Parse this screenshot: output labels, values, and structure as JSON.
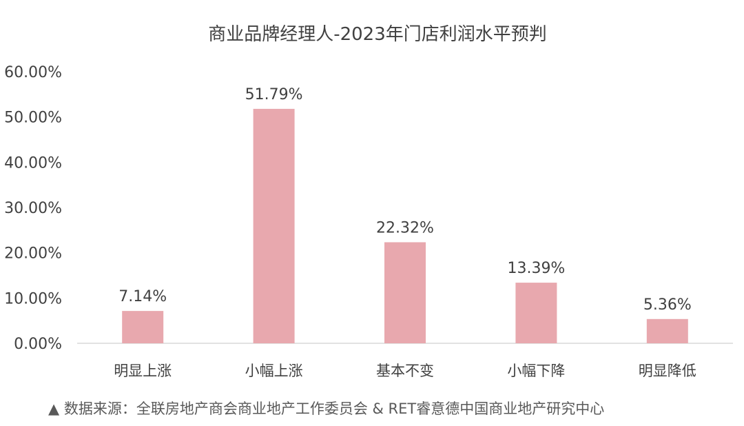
{
  "chart_data": {
    "type": "bar",
    "title": "商业品牌经理人-2023年门店利润水平预判",
    "categories": [
      "明显上涨",
      "小幅上涨",
      "基本不变",
      "小幅下降",
      "明显降低"
    ],
    "values": [
      7.14,
      51.79,
      22.32,
      13.39,
      5.36
    ],
    "data_labels": [
      "7.14%",
      "51.79%",
      "22.32%",
      "13.39%",
      "5.36%"
    ],
    "y_ticks": [
      0,
      10,
      20,
      30,
      40,
      50,
      60
    ],
    "y_tick_labels": [
      "0.00%",
      "10.00%",
      "20.00%",
      "30.00%",
      "40.00%",
      "50.00%",
      "60.00%"
    ],
    "ylim": [
      0,
      60
    ],
    "grid": false,
    "legend": "none",
    "bar_color": "#e8a8ae",
    "axis_color": "#d9d9d9"
  },
  "source_note": "▲ 数据来源：全联房地产商会商业地产工作委员会 & RET睿意德中国商业地产研究中心"
}
